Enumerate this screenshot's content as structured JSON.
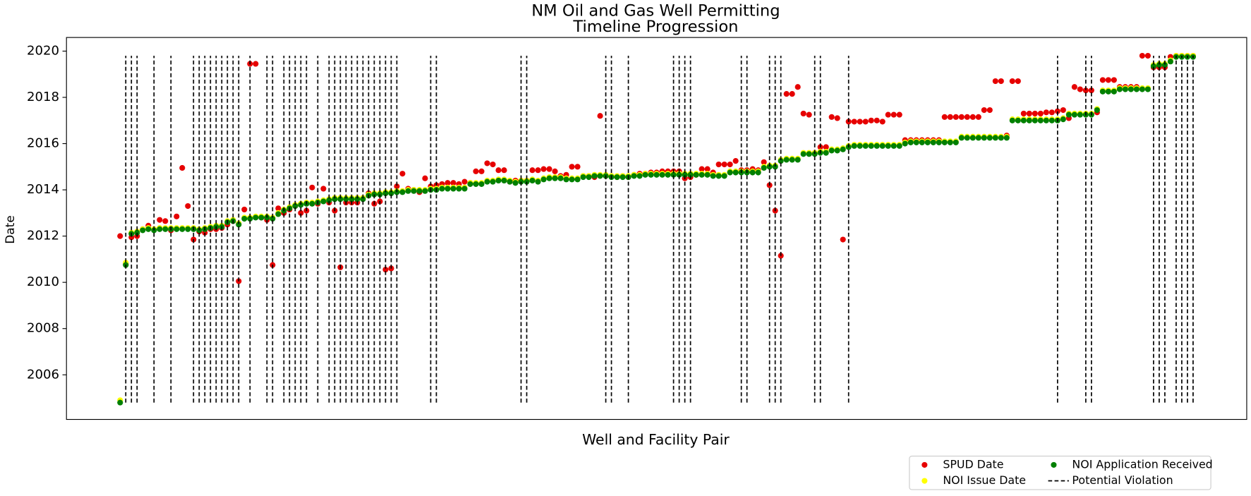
{
  "chart_data": {
    "type": "scatter",
    "title": [
      "NM Oil and Gas Well Permitting",
      "Timeline Progression"
    ],
    "x_label": "Well and Facility Pair",
    "y_label": "Date",
    "xlim": [
      -9.5,
      199.5
    ],
    "ylim": [
      2004.07,
      2020.59
    ],
    "yticks": [
      2006,
      2008,
      2010,
      2012,
      2014,
      2016,
      2018,
      2020
    ],
    "grid": false,
    "legend": "lower right",
    "x": [
      0,
      1,
      2,
      3,
      4,
      5,
      6,
      7,
      8,
      9,
      10,
      11,
      12,
      13,
      14,
      15,
      16,
      17,
      18,
      19,
      20,
      21,
      22,
      23,
      24,
      25,
      26,
      27,
      28,
      29,
      30,
      31,
      32,
      33,
      34,
      35,
      36,
      37,
      38,
      39,
      40,
      41,
      42,
      43,
      44,
      45,
      46,
      47,
      48,
      49,
      50,
      51,
      52,
      53,
      54,
      55,
      56,
      57,
      58,
      59,
      60,
      61,
      62,
      63,
      64,
      65,
      66,
      67,
      68,
      69,
      70,
      71,
      72,
      73,
      74,
      75,
      76,
      77,
      78,
      79,
      80,
      81,
      82,
      83,
      84,
      85,
      86,
      87,
      88,
      89,
      90,
      91,
      92,
      93,
      94,
      95,
      96,
      97,
      98,
      99,
      100,
      101,
      102,
      103,
      104,
      105,
      106,
      107,
      108,
      109,
      110,
      111,
      112,
      113,
      114,
      115,
      116,
      117,
      118,
      119,
      120,
      121,
      122,
      123,
      124,
      125,
      126,
      127,
      128,
      129,
      130,
      131,
      132,
      133,
      134,
      135,
      136,
      137,
      138,
      139,
      140,
      141,
      142,
      143,
      144,
      145,
      146,
      147,
      148,
      149,
      150,
      151,
      152,
      153,
      154,
      155,
      156,
      157,
      158,
      159,
      160,
      161,
      162,
      163,
      164,
      165,
      166,
      167,
      168,
      169,
      170,
      171,
      172,
      173,
      174,
      175,
      176,
      177,
      178,
      179,
      180,
      181,
      182,
      183,
      184,
      185,
      186,
      187,
      188,
      189,
      190
    ],
    "series": [
      {
        "name": "SPUD Date",
        "color": "#e60000",
        "values": [
          2012.0,
          2010.8,
          2011.95,
          2012.0,
          2012.3,
          2012.45,
          2012.3,
          2012.7,
          2012.65,
          2012.25,
          2012.85,
          2014.95,
          2013.3,
          2011.85,
          2012.2,
          2012.15,
          2012.3,
          2012.3,
          2012.35,
          2012.5,
          2012.65,
          2010.05,
          2013.15,
          2019.45,
          2019.45,
          2012.8,
          2012.7,
          2010.75,
          2013.2,
          2013.0,
          2013.15,
          2013.3,
          2013.0,
          2013.1,
          2014.1,
          2013.4,
          2014.05,
          2013.45,
          2013.1,
          2010.65,
          2013.45,
          2013.45,
          2013.45,
          2013.65,
          2013.85,
          2013.4,
          2013.5,
          2010.55,
          2010.6,
          2014.15,
          2014.7,
          2014.05,
          2014.0,
          2013.9,
          2014.5,
          2014.15,
          2014.2,
          2014.25,
          2014.3,
          2014.3,
          2014.25,
          2014.35,
          2014.3,
          2014.8,
          2014.8,
          2015.15,
          2015.1,
          2014.85,
          2014.85,
          2014.35,
          2014.4,
          2014.4,
          2014.4,
          2014.85,
          2014.85,
          2014.9,
          2014.9,
          2014.8,
          2014.6,
          2014.65,
          2015.0,
          2015.0,
          2014.6,
          2014.6,
          2014.55,
          2017.2,
          2014.6,
          2014.6,
          2014.55,
          2014.6,
          2014.55,
          2014.65,
          2014.7,
          2014.7,
          2014.75,
          2014.75,
          2014.8,
          2014.8,
          2014.8,
          2014.8,
          2014.5,
          2014.55,
          2014.65,
          2014.9,
          2014.9,
          2014.75,
          2015.1,
          2015.1,
          2015.1,
          2015.25,
          2014.85,
          2014.85,
          2014.9,
          2014.85,
          2015.2,
          2014.2,
          2013.1,
          2011.15,
          2018.15,
          2018.15,
          2018.45,
          2017.3,
          2017.25,
          2015.6,
          2015.85,
          2015.85,
          2017.15,
          2017.1,
          2011.85,
          2016.95,
          2016.95,
          2016.95,
          2016.95,
          2017.0,
          2017.0,
          2016.95,
          2017.25,
          2017.25,
          2017.25,
          2016.15,
          2016.15,
          2016.15,
          2016.15,
          2016.15,
          2016.15,
          2016.15,
          2017.15,
          2017.15,
          2017.15,
          2017.15,
          2017.15,
          2017.15,
          2017.15,
          2017.45,
          2017.45,
          2018.7,
          2018.7,
          2016.35,
          2018.7,
          2018.7,
          2017.3,
          2017.3,
          2017.3,
          2017.3,
          2017.35,
          2017.35,
          2017.4,
          2017.45,
          2017.1,
          2018.45,
          2018.35,
          2018.3,
          2018.3,
          2017.35,
          2018.75,
          2018.75,
          2018.75,
          2018.45,
          2018.45,
          2018.45,
          2018.45,
          2019.8,
          2019.8,
          2019.3,
          2019.3,
          2019.3,
          2019.75,
          2019.8,
          2019.8,
          2019.8,
          2019.8
        ]
      },
      {
        "name": "NOI Issue Date",
        "color": "#ffff00",
        "values": [
          2004.9,
          2010.85,
          2012.15,
          2012.2,
          2012.3,
          2012.35,
          2012.3,
          2012.35,
          2012.35,
          2012.35,
          2012.35,
          2012.35,
          2012.35,
          2012.35,
          2012.3,
          2012.35,
          2012.4,
          2012.45,
          2012.45,
          2012.65,
          2012.7,
          2012.55,
          2012.8,
          2012.8,
          2012.85,
          2012.85,
          2012.85,
          2012.8,
          2013.0,
          2013.15,
          2013.25,
          2013.35,
          2013.4,
          2013.45,
          2013.45,
          2013.5,
          2013.55,
          2013.6,
          2013.65,
          2013.65,
          2013.65,
          2013.65,
          2013.65,
          2013.65,
          2013.8,
          2013.85,
          2013.85,
          2013.9,
          2013.9,
          2013.95,
          2013.95,
          2014.0,
          2014.0,
          2014.0,
          2014.0,
          2014.05,
          2014.05,
          2014.1,
          2014.1,
          2014.1,
          2014.1,
          2014.1,
          2014.3,
          2014.3,
          2014.3,
          2014.4,
          2014.4,
          2014.45,
          2014.45,
          2014.4,
          2014.35,
          2014.4,
          2014.4,
          2014.45,
          2014.4,
          2014.5,
          2014.55,
          2014.55,
          2014.55,
          2014.5,
          2014.5,
          2014.5,
          2014.6,
          2014.6,
          2014.65,
          2014.65,
          2014.65,
          2014.6,
          2014.6,
          2014.6,
          2014.6,
          2014.65,
          2014.65,
          2014.7,
          2014.7,
          2014.7,
          2014.7,
          2014.7,
          2014.7,
          2014.7,
          2014.7,
          2014.7,
          2014.7,
          2014.7,
          2014.7,
          2014.65,
          2014.65,
          2014.65,
          2014.8,
          2014.8,
          2014.8,
          2014.8,
          2014.8,
          2014.8,
          2015.0,
          2015.05,
          2015.05,
          2015.3,
          2015.35,
          2015.35,
          2015.35,
          2015.6,
          2015.6,
          2015.6,
          2015.65,
          2015.65,
          2015.75,
          2015.75,
          2015.8,
          2015.9,
          2015.95,
          2015.95,
          2015.95,
          2015.95,
          2015.95,
          2015.95,
          2015.95,
          2015.95,
          2015.95,
          2016.05,
          2016.1,
          2016.1,
          2016.1,
          2016.1,
          2016.1,
          2016.1,
          2016.1,
          2016.1,
          2016.1,
          2016.3,
          2016.3,
          2016.3,
          2016.3,
          2016.3,
          2016.3,
          2016.3,
          2016.3,
          2016.3,
          2017.05,
          2017.05,
          2017.05,
          2017.05,
          2017.05,
          2017.05,
          2017.05,
          2017.05,
          2017.05,
          2017.1,
          2017.3,
          2017.3,
          2017.3,
          2017.3,
          2017.3,
          2017.5,
          2018.3,
          2018.3,
          2018.3,
          2018.4,
          2018.4,
          2018.4,
          2018.4,
          2018.4,
          2018.4,
          2019.4,
          2019.45,
          2019.45,
          2019.6,
          2019.8,
          2019.8,
          2019.8,
          2019.8
        ]
      },
      {
        "name": "NOI Application Received",
        "color": "#008000",
        "values": [
          2004.8,
          2010.75,
          2012.1,
          2012.15,
          2012.25,
          2012.3,
          2012.25,
          2012.3,
          2012.3,
          2012.3,
          2012.3,
          2012.3,
          2012.3,
          2012.3,
          2012.25,
          2012.3,
          2012.35,
          2012.4,
          2012.4,
          2012.6,
          2012.65,
          2012.5,
          2012.75,
          2012.75,
          2012.8,
          2012.8,
          2012.8,
          2012.75,
          2012.95,
          2013.1,
          2013.2,
          2013.3,
          2013.35,
          2013.4,
          2013.4,
          2013.45,
          2013.5,
          2013.55,
          2013.6,
          2013.6,
          2013.6,
          2013.6,
          2013.6,
          2013.6,
          2013.75,
          2013.8,
          2013.8,
          2013.85,
          2013.85,
          2013.9,
          2013.9,
          2013.95,
          2013.95,
          2013.95,
          2013.95,
          2014.0,
          2014.0,
          2014.05,
          2014.05,
          2014.05,
          2014.05,
          2014.05,
          2014.25,
          2014.25,
          2014.25,
          2014.35,
          2014.35,
          2014.4,
          2014.4,
          2014.35,
          2014.3,
          2014.35,
          2014.35,
          2014.4,
          2014.35,
          2014.45,
          2014.5,
          2014.5,
          2014.5,
          2014.45,
          2014.45,
          2014.45,
          2014.55,
          2014.55,
          2014.6,
          2014.6,
          2014.6,
          2014.55,
          2014.55,
          2014.55,
          2014.55,
          2014.6,
          2014.6,
          2014.65,
          2014.65,
          2014.65,
          2014.65,
          2014.65,
          2014.65,
          2014.65,
          2014.65,
          2014.65,
          2014.65,
          2014.65,
          2014.65,
          2014.6,
          2014.6,
          2014.6,
          2014.75,
          2014.75,
          2014.75,
          2014.75,
          2014.75,
          2014.75,
          2014.95,
          2015.0,
          2015.0,
          2015.25,
          2015.3,
          2015.3,
          2015.3,
          2015.55,
          2015.55,
          2015.55,
          2015.6,
          2015.6,
          2015.7,
          2015.7,
          2015.75,
          2015.85,
          2015.9,
          2015.9,
          2015.9,
          2015.9,
          2015.9,
          2015.9,
          2015.9,
          2015.9,
          2015.9,
          2016.0,
          2016.05,
          2016.05,
          2016.05,
          2016.05,
          2016.05,
          2016.05,
          2016.05,
          2016.05,
          2016.05,
          2016.25,
          2016.25,
          2016.25,
          2016.25,
          2016.25,
          2016.25,
          2016.25,
          2016.25,
          2016.25,
          2017.0,
          2017.0,
          2017.0,
          2017.0,
          2017.0,
          2017.0,
          2017.0,
          2017.0,
          2017.0,
          2017.05,
          2017.25,
          2017.25,
          2017.25,
          2017.25,
          2017.25,
          2017.45,
          2018.25,
          2018.25,
          2018.25,
          2018.35,
          2018.35,
          2018.35,
          2018.35,
          2018.35,
          2018.35,
          2019.35,
          2019.4,
          2019.4,
          2019.55,
          2019.75,
          2019.75,
          2019.75,
          2019.75
        ]
      },
      {
        "name": "Potential Violation",
        "color": "#000000",
        "type": "vline",
        "x": [
          1,
          2,
          3,
          6,
          9,
          13,
          14,
          15,
          16,
          17,
          18,
          19,
          20,
          21,
          23,
          26,
          27,
          29,
          30,
          31,
          32,
          33,
          35,
          37,
          38,
          39,
          40,
          41,
          42,
          43,
          44,
          45,
          46,
          47,
          48,
          49,
          55,
          56,
          71,
          72,
          86,
          87,
          90,
          98,
          99,
          100,
          101,
          110,
          111,
          115,
          116,
          117,
          123,
          124,
          129,
          166,
          171,
          172,
          183,
          184,
          185,
          187,
          188,
          189,
          190
        ]
      }
    ]
  }
}
